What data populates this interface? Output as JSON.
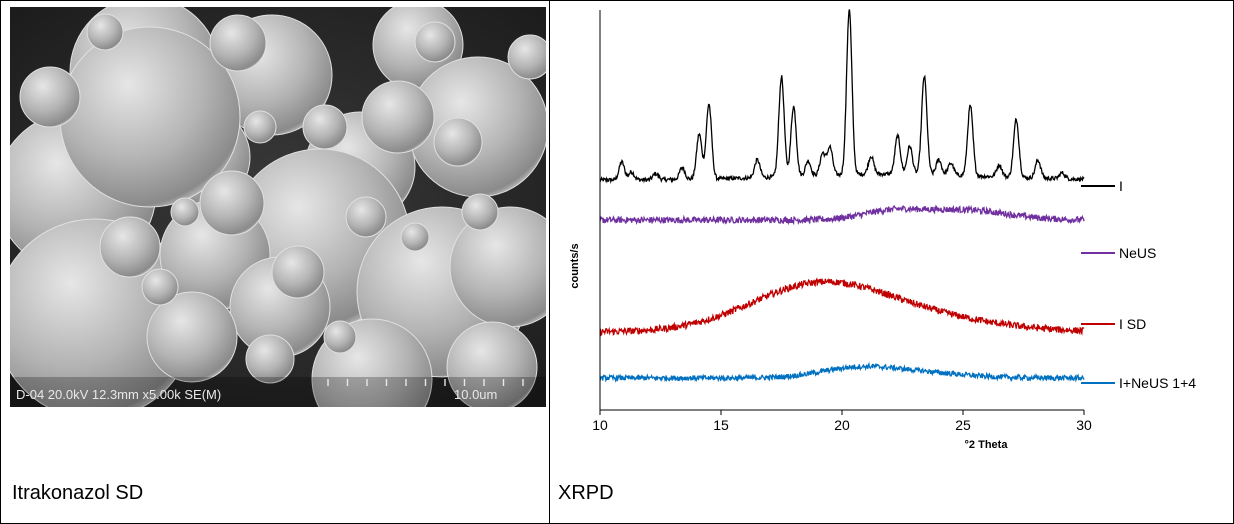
{
  "table": {
    "left_caption": "Itrakonazol SD",
    "right_caption": "XRPD"
  },
  "sem_image": {
    "info_label": "D-04 20.0kV 12.3mm x5.00k SE(M)",
    "scale_label": "10.0um"
  },
  "chart_data": {
    "type": "line",
    "title": "",
    "xlabel": "°2 Theta",
    "ylabel": "counts/s",
    "xlim": [
      10,
      30
    ],
    "xticks": [
      10,
      15,
      20,
      25,
      30
    ],
    "y_axis_numeric_labels": false,
    "legend_position": "right",
    "series": [
      {
        "name": "I",
        "color": "#000000",
        "peaks": [
          [
            10.9,
            18
          ],
          [
            11.3,
            8
          ],
          [
            12.3,
            6
          ],
          [
            13.4,
            12
          ],
          [
            14.1,
            45
          ],
          [
            14.5,
            75
          ],
          [
            16.5,
            18
          ],
          [
            17.5,
            100
          ],
          [
            18.0,
            70
          ],
          [
            18.6,
            15
          ],
          [
            19.2,
            22
          ],
          [
            19.5,
            28
          ],
          [
            20.3,
            165
          ],
          [
            21.2,
            18
          ],
          [
            22.3,
            38
          ],
          [
            22.8,
            28
          ],
          [
            23.4,
            98
          ],
          [
            24.0,
            15
          ],
          [
            24.5,
            12
          ],
          [
            25.3,
            70
          ],
          [
            26.5,
            12
          ],
          [
            27.2,
            58
          ],
          [
            28.1,
            18
          ],
          [
            29.1,
            6
          ]
        ]
      },
      {
        "name": "NeUS",
        "color": "#7030a0",
        "halo": [
          [
            22.0,
            8,
            1.2
          ],
          [
            25.0,
            10,
            1.8
          ]
        ]
      },
      {
        "name": "I SD",
        "color": "#c00000",
        "halo": [
          [
            19.0,
            46,
            2.8
          ],
          [
            23.5,
            12,
            3.0
          ]
        ]
      },
      {
        "name": "I+NeUS 1+4",
        "color": "#0070c0",
        "halo": [
          [
            20.5,
            8,
            1.5
          ],
          [
            22.8,
            6,
            2.0
          ]
        ]
      }
    ]
  }
}
